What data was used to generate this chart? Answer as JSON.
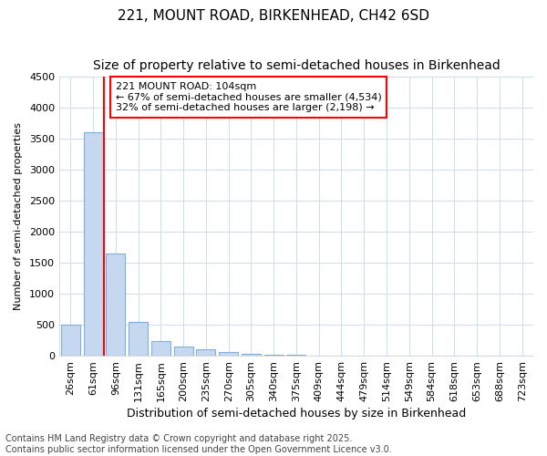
{
  "title": "221, MOUNT ROAD, BIRKENHEAD, CH42 6SD",
  "subtitle": "Size of property relative to semi-detached houses in Birkenhead",
  "xlabel": "Distribution of semi-detached houses by size in Birkenhead",
  "ylabel": "Number of semi-detached properties",
  "categories": [
    "26sqm",
    "61sqm",
    "96sqm",
    "131sqm",
    "165sqm",
    "200sqm",
    "235sqm",
    "270sqm",
    "305sqm",
    "340sqm",
    "375sqm",
    "409sqm",
    "444sqm",
    "479sqm",
    "514sqm",
    "549sqm",
    "584sqm",
    "618sqm",
    "653sqm",
    "688sqm",
    "723sqm"
  ],
  "values": [
    500,
    3600,
    1650,
    540,
    235,
    155,
    100,
    60,
    35,
    20,
    10,
    3,
    2,
    1,
    0,
    0,
    0,
    0,
    0,
    0,
    0
  ],
  "bar_color": "#c5d8f0",
  "bar_edge_color": "#7fb0d8",
  "vline_x": 1.5,
  "vline_color": "red",
  "annotation_text": "221 MOUNT ROAD: 104sqm\n← 67% of semi-detached houses are smaller (4,534)\n32% of semi-detached houses are larger (2,198) →",
  "annotation_box_color": "white",
  "annotation_box_edge_color": "red",
  "ylim": [
    0,
    4500
  ],
  "yticks": [
    0,
    500,
    1000,
    1500,
    2000,
    2500,
    3000,
    3500,
    4000,
    4500
  ],
  "footnote": "Contains HM Land Registry data © Crown copyright and database right 2025.\nContains public sector information licensed under the Open Government Licence v3.0.",
  "title_fontsize": 11,
  "subtitle_fontsize": 10,
  "xlabel_fontsize": 9,
  "ylabel_fontsize": 8,
  "tick_fontsize": 8,
  "footnote_fontsize": 7,
  "bg_color": "#ffffff",
  "grid_color": "#d0dff0"
}
